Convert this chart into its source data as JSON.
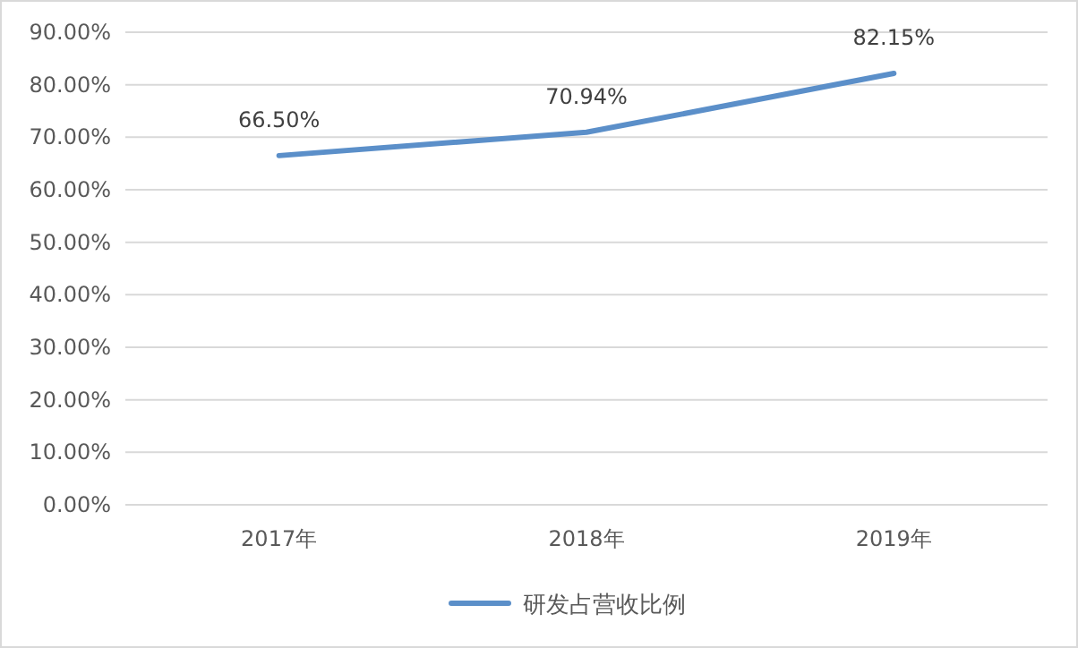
{
  "chart_data": {
    "type": "line",
    "categories": [
      "2017年",
      "2018年",
      "2019年"
    ],
    "series": [
      {
        "name": "研发占营收比例",
        "color": "#5b8fc9",
        "values": [
          66.5,
          70.94,
          82.15
        ],
        "value_labels": [
          "66.50%",
          "70.94%",
          "82.15%"
        ]
      }
    ],
    "ylim": [
      0,
      90
    ],
    "yticks": [
      {
        "value": 0,
        "label": "0.00%"
      },
      {
        "value": 10,
        "label": "10.00%"
      },
      {
        "value": 20,
        "label": "20.00%"
      },
      {
        "value": 30,
        "label": "30.00%"
      },
      {
        "value": 40,
        "label": "40.00%"
      },
      {
        "value": 50,
        "label": "50.00%"
      },
      {
        "value": 60,
        "label": "60.00%"
      },
      {
        "value": 70,
        "label": "70.00%"
      },
      {
        "value": 80,
        "label": "80.00%"
      },
      {
        "value": 90,
        "label": "90.00%"
      }
    ],
    "grid": "y",
    "legend": "bottom",
    "marker": "none",
    "line_style": "solid"
  }
}
